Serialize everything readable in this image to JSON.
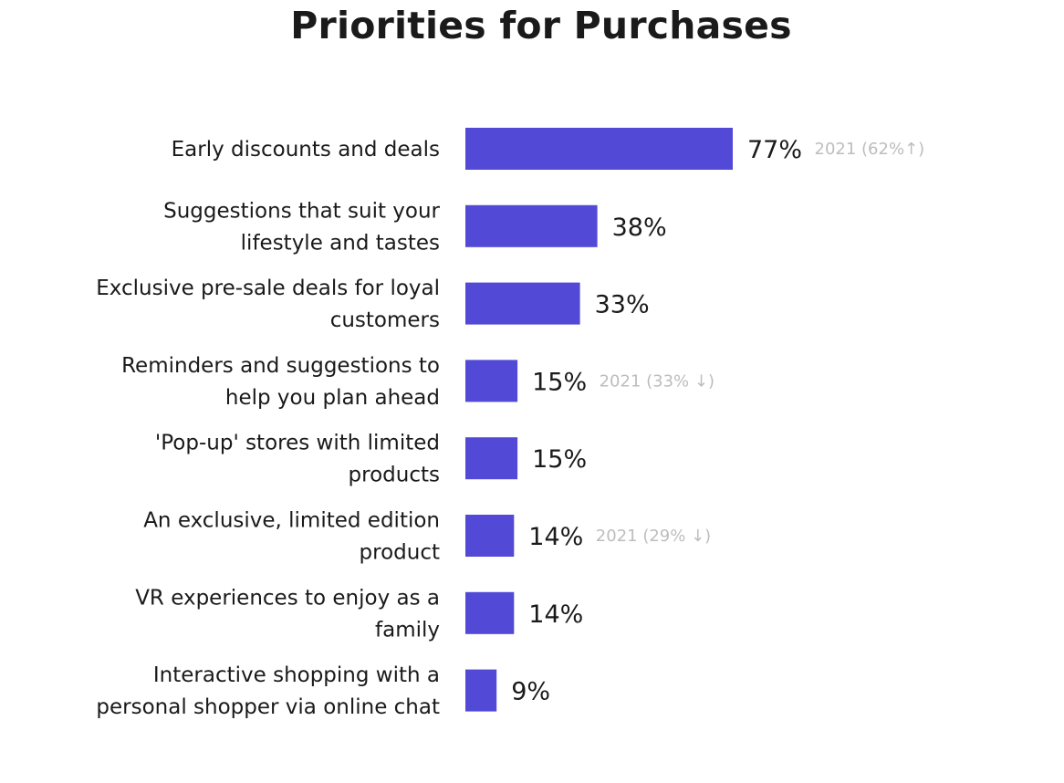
{
  "chart_data": {
    "type": "bar",
    "orientation": "horizontal",
    "title": "Priorities for Purchases",
    "bar_color": "#5249D6",
    "note_color": "#BDBDBD",
    "xlim": [
      0,
      100
    ],
    "grid": false,
    "legend": "none",
    "categories": [
      "Early discounts and deals",
      "Suggestions that suit your lifestyle and tastes",
      "Exclusive pre-sale deals for loyal customers",
      "Reminders and suggestions to help you plan ahead",
      "'Pop-up' stores with limited products",
      "An exclusive, limited edition product",
      "VR experiences to enjoy as a family",
      "Interactive shopping with a personal shopper via online chat"
    ],
    "label_lines": [
      [
        "Early discounts and deals"
      ],
      [
        "Suggestions that suit your",
        "lifestyle and tastes"
      ],
      [
        "Exclusive pre-sale deals for loyal",
        "customers"
      ],
      [
        "Reminders and suggestions to",
        "help you plan ahead"
      ],
      [
        "'Pop-up' stores with limited",
        "products"
      ],
      [
        "An exclusive, limited edition",
        "product"
      ],
      [
        "VR experiences to enjoy as a",
        "family"
      ],
      [
        "Interactive shopping with a",
        "personal shopper via online chat"
      ]
    ],
    "values": [
      77,
      38,
      33,
      15,
      15,
      14,
      14,
      9
    ],
    "value_labels": [
      "77%",
      "38%",
      "33%",
      "15%",
      "15%",
      "14%",
      "14%",
      "9%"
    ],
    "annotations": [
      "2021 (62%↑)",
      "",
      "",
      "2021 (33% ↓)",
      "",
      "2021 (29% ↓)",
      "",
      ""
    ]
  }
}
